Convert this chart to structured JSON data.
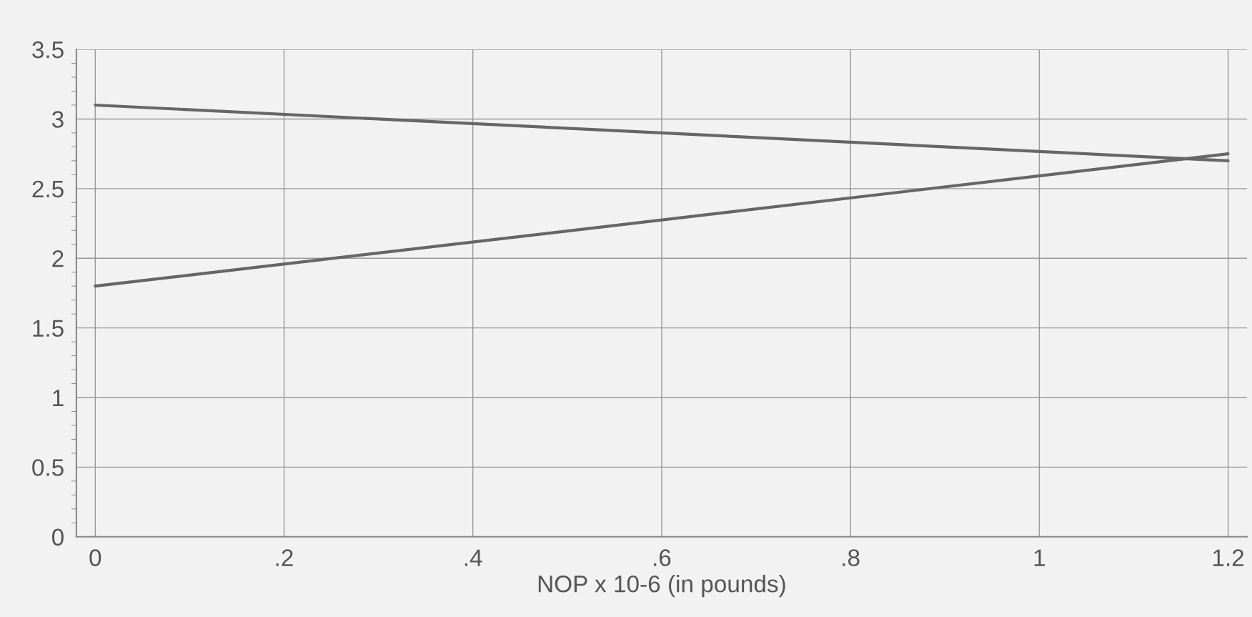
{
  "chart_data": {
    "type": "line",
    "xlabel": "NOP x 10-6 (in pounds)",
    "xlim": [
      -0.02,
      1.22
    ],
    "ylim": [
      0,
      3.5
    ],
    "xticks": [
      0,
      {
        "value": 0.2,
        "label": ".2"
      },
      {
        "value": 0.4,
        "label": ".4"
      },
      {
        "value": 0.6,
        "label": ".6"
      },
      {
        "value": 0.8,
        "label": ".8"
      },
      1,
      1.2
    ],
    "yticks": [
      0,
      0.5,
      1,
      1.5,
      2,
      2.5,
      3,
      3.5
    ],
    "x": [
      0,
      1.2
    ],
    "grid": true,
    "marker": "none",
    "line_style": "solid",
    "series": [
      {
        "color": "#666666",
        "values": [
          3.1,
          2.7
        ]
      },
      {
        "color": "#666666",
        "values": [
          1.8,
          2.75
        ]
      }
    ]
  }
}
